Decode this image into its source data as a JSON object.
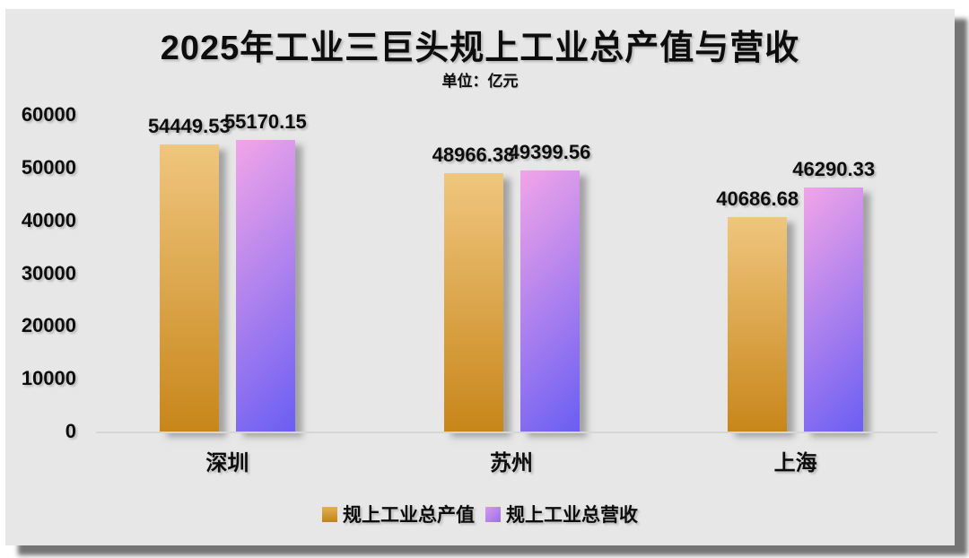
{
  "page": {
    "background": "#ffffff"
  },
  "card": {
    "background": "#e7e7e7",
    "shadow_color": "#3e3e3e"
  },
  "chart_data": {
    "type": "bar",
    "title": "2025年工业三巨头规上工业总产值与营收",
    "subtitle": "单位：亿元",
    "categories": [
      "深圳",
      "苏州",
      "上海"
    ],
    "series": [
      {
        "name": "规上工业总产值",
        "values": [
          54449.53,
          48966.38,
          40686.68
        ],
        "data_labels": [
          "54449.53",
          "48966.38",
          "40686.68"
        ],
        "bar_gradient": [
          "#efc67e",
          "#c8861a"
        ],
        "legend_swatch_gradient": [
          "#e2b054",
          "#bd831d"
        ]
      },
      {
        "name": "规上工业总营收",
        "values": [
          55170.15,
          49399.56,
          46290.33
        ],
        "data_labels": [
          "55170.15",
          "49399.56",
          "46290.33"
        ],
        "bar_gradient": [
          "#f2a5e8",
          "#6a5ef3"
        ],
        "legend_swatch_gradient": [
          "#d49ae8",
          "#9a6ff0"
        ]
      }
    ],
    "xlabel": "",
    "ylabel": "",
    "ylim": [
      0,
      60000
    ],
    "yticks": [
      "0",
      "10000",
      "20000",
      "30000",
      "40000",
      "50000",
      "60000"
    ],
    "ytick_values": [
      0,
      10000,
      20000,
      30000,
      40000,
      50000,
      60000
    ],
    "grid": false,
    "legend_position": "bottom",
    "text_color": "#0d0d0d",
    "axis_line_color": "#d6d6d6"
  }
}
